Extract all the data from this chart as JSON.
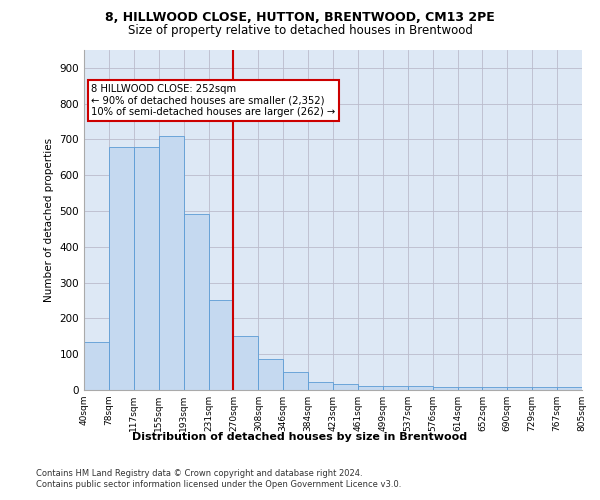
{
  "title1": "8, HILLWOOD CLOSE, HUTTON, BRENTWOOD, CM13 2PE",
  "title2": "Size of property relative to detached houses in Brentwood",
  "xlabel": "Distribution of detached houses by size in Brentwood",
  "ylabel": "Number of detached properties",
  "bar_values": [
    135,
    678,
    678,
    710,
    493,
    252,
    152,
    88,
    50,
    22,
    18,
    10,
    10,
    10,
    8,
    8,
    8,
    8,
    8,
    8
  ],
  "bar_labels": [
    "40sqm",
    "78sqm",
    "117sqm",
    "155sqm",
    "193sqm",
    "231sqm",
    "270sqm",
    "308sqm",
    "346sqm",
    "384sqm",
    "423sqm",
    "461sqm",
    "499sqm",
    "537sqm",
    "576sqm",
    "614sqm",
    "652sqm",
    "690sqm",
    "729sqm",
    "767sqm",
    "805sqm"
  ],
  "bar_color": "#c5d9f0",
  "bar_edge_color": "#5b9bd5",
  "vline_x": 6.0,
  "vline_color": "#cc0000",
  "annotation_text": "8 HILLWOOD CLOSE: 252sqm\n← 90% of detached houses are smaller (2,352)\n10% of semi-detached houses are larger (262) →",
  "annotation_box_color": "#ffffff",
  "annotation_box_edge": "#cc0000",
  "ylim": [
    0,
    950
  ],
  "yticks": [
    0,
    100,
    200,
    300,
    400,
    500,
    600,
    700,
    800,
    900
  ],
  "footer1": "Contains HM Land Registry data © Crown copyright and database right 2024.",
  "footer2": "Contains public sector information licensed under the Open Government Licence v3.0.",
  "background_color": "#dde8f5",
  "plot_bg_color": "#ffffff",
  "grid_color": "#bbbbcc"
}
